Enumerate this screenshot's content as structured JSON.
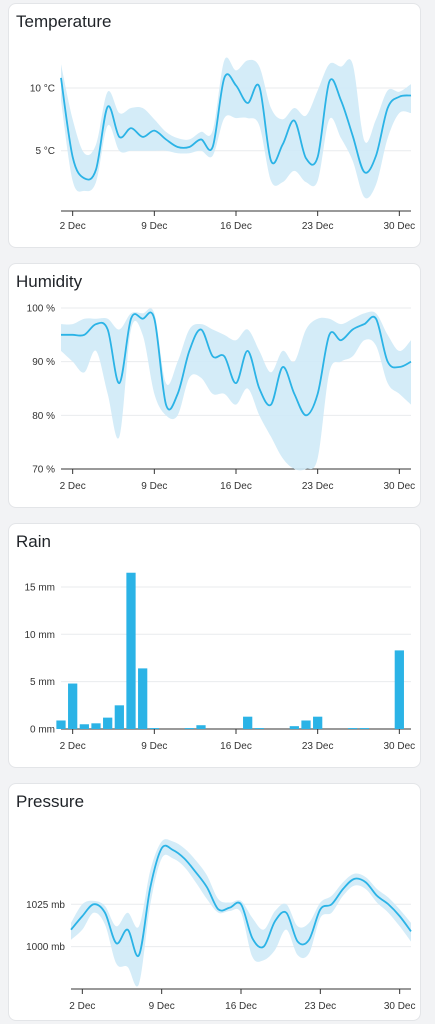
{
  "colors": {
    "line": "#2bb3e6",
    "band": "#cfeaf7",
    "bar": "#2bb3e6",
    "grid": "#e9ebee",
    "axis": "#333333"
  },
  "chart_data": [
    {
      "id": "temperature",
      "type": "line",
      "title": "Temperature",
      "x_ticks": [
        "2 Dec",
        "9 Dec",
        "16 Dec",
        "23 Dec",
        "30 Dec"
      ],
      "y_ticks": [
        "10 °C",
        "5 °C"
      ],
      "y_tick_values": [
        10,
        5
      ],
      "ylim": [
        0.2,
        13.5
      ],
      "x": [
        1,
        2,
        3,
        4,
        5,
        6,
        7,
        8,
        9,
        10,
        11,
        12,
        13,
        14,
        15,
        16,
        17,
        18,
        19,
        20,
        21,
        22,
        23,
        24,
        25,
        26,
        27,
        28,
        29,
        30,
        31
      ],
      "series": [
        {
          "values": [
            10.8,
            4.5,
            2.8,
            3.5,
            8.5,
            6.1,
            6.8,
            6.1,
            6.6,
            5.9,
            5.3,
            5.3,
            5.9,
            5.3,
            10.8,
            10.2,
            8.8,
            10.1,
            4.2,
            5.5,
            7.4,
            4.4,
            4.5,
            10.5,
            9.0,
            6.2,
            3.3,
            4.6,
            8.4,
            9.3,
            9.4
          ],
          "low": [
            9.0,
            2.6,
            1.8,
            2.5,
            7.0,
            5.0,
            5.0,
            5.0,
            5.0,
            5.0,
            4.8,
            4.8,
            5.0,
            4.6,
            7.6,
            7.6,
            7.6,
            7.0,
            2.6,
            2.5,
            3.4,
            2.5,
            2.6,
            7.5,
            6.0,
            4.2,
            1.3,
            2.3,
            6.0,
            8.0,
            8.0
          ],
          "high": [
            11.9,
            7.5,
            4.8,
            5.5,
            9.7,
            8.0,
            8.4,
            8.4,
            7.5,
            6.5,
            6.0,
            5.9,
            6.5,
            6.6,
            12.2,
            11.4,
            12.2,
            11.7,
            8.4,
            7.5,
            8.4,
            7.8,
            9.8,
            11.9,
            11.7,
            11.9,
            5.8,
            7.5,
            9.8,
            9.7,
            10.3
          ]
        }
      ]
    },
    {
      "id": "humidity",
      "type": "line",
      "title": "Humidity",
      "x_ticks": [
        "2 Dec",
        "9 Dec",
        "16 Dec",
        "23 Dec",
        "30 Dec"
      ],
      "y_ticks": [
        "100 %",
        "90 %",
        "80 %",
        "70 %"
      ],
      "y_tick_values": [
        100,
        90,
        80,
        70
      ],
      "ylim": [
        70,
        100
      ],
      "x": [
        1,
        2,
        3,
        4,
        5,
        6,
        7,
        8,
        9,
        10,
        11,
        12,
        13,
        14,
        15,
        16,
        17,
        18,
        19,
        20,
        21,
        22,
        23,
        24,
        25,
        26,
        27,
        28,
        29,
        30,
        31
      ],
      "series": [
        {
          "values": [
            95,
            95,
            95,
            97,
            96,
            86,
            98,
            98,
            98,
            82,
            84,
            92,
            96,
            91,
            91,
            86,
            92,
            85,
            82,
            89,
            84,
            80,
            84,
            95,
            94,
            96,
            97,
            98,
            90,
            89,
            90
          ],
          "low": [
            92,
            90,
            88,
            92,
            84,
            76,
            96,
            95,
            84,
            80,
            80,
            87,
            87,
            84,
            84,
            82,
            85,
            80,
            76,
            72,
            70,
            70,
            72,
            88,
            90,
            91,
            94,
            93,
            86,
            84,
            82
          ],
          "high": [
            97,
            97,
            98,
            98,
            98,
            96,
            99,
            99,
            99,
            86,
            90,
            96,
            97,
            96,
            95,
            94,
            96,
            92,
            88,
            92,
            90,
            96,
            98,
            98,
            97,
            98,
            99,
            99,
            95,
            92,
            94
          ]
        }
      ]
    },
    {
      "id": "rain",
      "type": "bar",
      "title": "Rain",
      "x_ticks": [
        "2 Dec",
        "9 Dec",
        "16 Dec",
        "23 Dec",
        "30 Dec"
      ],
      "y_ticks": [
        "15 mm",
        "10 mm",
        "5 mm",
        "0 mm"
      ],
      "y_tick_values": [
        15,
        10,
        5,
        0
      ],
      "ylim": [
        0,
        17
      ],
      "x": [
        1,
        2,
        3,
        4,
        5,
        6,
        7,
        8,
        9,
        10,
        11,
        12,
        13,
        14,
        15,
        16,
        17,
        18,
        19,
        20,
        21,
        22,
        23,
        24,
        25,
        26,
        27,
        28,
        29,
        30,
        31
      ],
      "values": [
        0.9,
        4.8,
        0.5,
        0.6,
        1.2,
        2.5,
        16.5,
        6.4,
        0.1,
        0,
        0,
        0.1,
        0.4,
        0,
        0,
        0,
        1.3,
        0.1,
        0,
        0,
        0.3,
        0.9,
        1.3,
        0,
        0,
        0.1,
        0.1,
        0,
        0,
        8.3,
        0
      ]
    },
    {
      "id": "pressure",
      "type": "line",
      "title": "Pressure",
      "x_ticks": [
        "2 Dec",
        "9 Dec",
        "16 Dec",
        "23 Dec",
        "30 Dec"
      ],
      "y_ticks": [
        "1025 mb",
        "1000 mb"
      ],
      "y_tick_values": [
        1025,
        1000
      ],
      "ylim": [
        975,
        1070
      ],
      "x": [
        1,
        2,
        3,
        4,
        5,
        6,
        7,
        8,
        9,
        10,
        11,
        12,
        13,
        14,
        15,
        16,
        17,
        18,
        19,
        20,
        21,
        22,
        23,
        24,
        25,
        26,
        27,
        28,
        29,
        30,
        31
      ],
      "series": [
        {
          "values": [
            1010,
            1018,
            1025,
            1020,
            1002,
            1010,
            995,
            1035,
            1058,
            1057,
            1052,
            1044,
            1035,
            1022,
            1023,
            1025,
            1005,
            1000,
            1015,
            1020,
            1003,
            1004,
            1022,
            1025,
            1034,
            1040,
            1038,
            1030,
            1025,
            1018,
            1009
          ],
          "low": [
            1004,
            1010,
            1020,
            1013,
            990,
            988,
            978,
            1025,
            1052,
            1052,
            1047,
            1038,
            1028,
            1020,
            1021,
            1020,
            994,
            992,
            998,
            1010,
            995,
            996,
            1017,
            1020,
            1030,
            1036,
            1034,
            1026,
            1020,
            1012,
            1003
          ],
          "high": [
            1014,
            1025,
            1027,
            1024,
            1012,
            1020,
            1012,
            1045,
            1062,
            1062,
            1058,
            1051,
            1042,
            1028,
            1026,
            1027,
            1017,
            1010,
            1021,
            1025,
            1012,
            1014,
            1026,
            1030,
            1038,
            1043,
            1041,
            1034,
            1029,
            1022,
            1014
          ]
        }
      ]
    }
  ]
}
